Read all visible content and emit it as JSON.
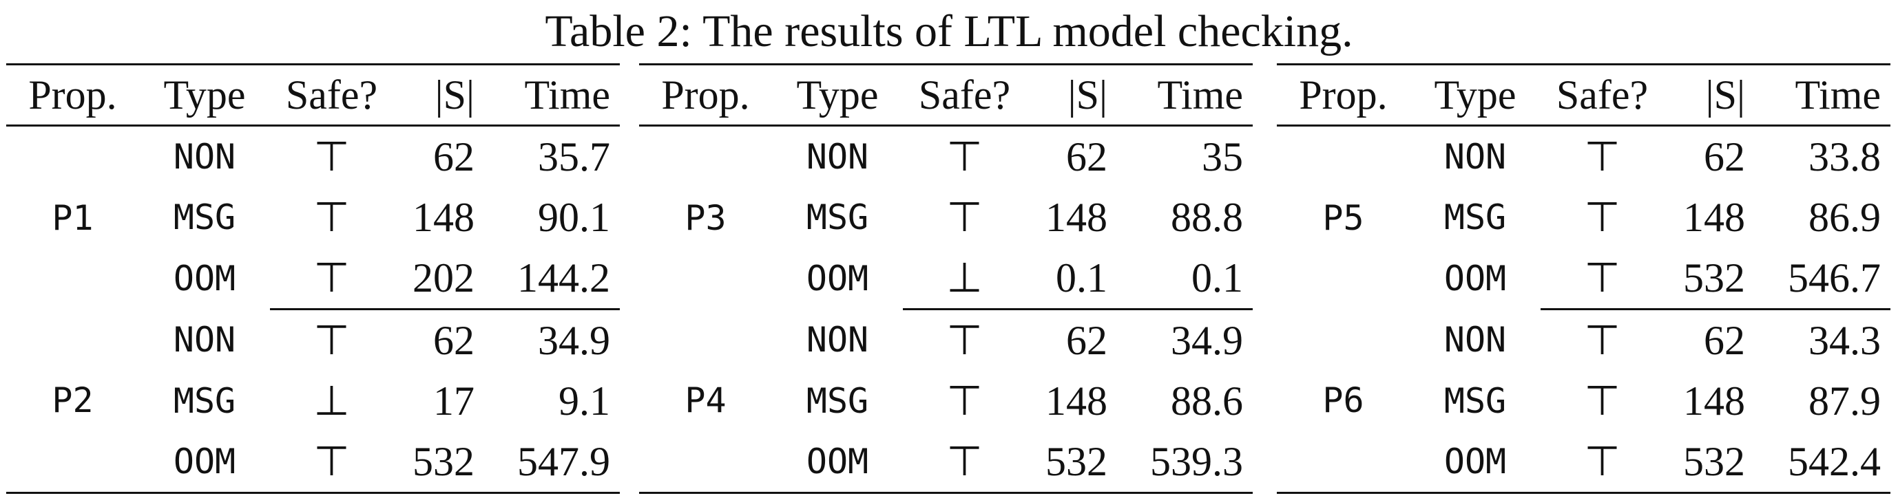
{
  "title": "Table 2: The results of LTL model checking.",
  "tables": [
    {
      "header": [
        "Prop.",
        "Type",
        "Safe?",
        "|S|",
        "Time"
      ],
      "groups": [
        {
          "prop": "P1",
          "rows": [
            [
              "NON",
              "⊤",
              62,
              35.7
            ],
            [
              "MSG",
              "⊤",
              148,
              90.1
            ],
            [
              "OOM",
              "⊤",
              202,
              144.2
            ]
          ]
        },
        {
          "prop": "P2",
          "rows": [
            [
              "NON",
              "⊤",
              62,
              34.9
            ],
            [
              "MSG",
              "⊥",
              17,
              9.1
            ],
            [
              "OOM",
              "⊤",
              532,
              547.9
            ]
          ]
        }
      ]
    },
    {
      "header": [
        "Prop.",
        "Type",
        "Safe?",
        "|S|",
        "Time"
      ],
      "groups": [
        {
          "prop": "P3",
          "rows": [
            [
              "NON",
              "⊤",
              62,
              35
            ],
            [
              "MSG",
              "⊤",
              148,
              88.8
            ],
            [
              "OOM",
              "⊥",
              0.1,
              0.1
            ]
          ]
        },
        {
          "prop": "P4",
          "rows": [
            [
              "NON",
              "⊤",
              62,
              34.9
            ],
            [
              "MSG",
              "⊤",
              148,
              88.6
            ],
            [
              "OOM",
              "⊤",
              532,
              539.3
            ]
          ]
        }
      ]
    },
    {
      "header": [
        "Prop.",
        "Type",
        "Safe?",
        "|S|",
        "Time"
      ],
      "groups": [
        {
          "prop": "P5",
          "rows": [
            [
              "NON",
              "⊤",
              62,
              33.8
            ],
            [
              "MSG",
              "⊤",
              148,
              86.9
            ],
            [
              "OOM",
              "⊤",
              532,
              546.7
            ]
          ]
        },
        {
          "prop": "P6",
          "rows": [
            [
              "NON",
              "⊤",
              62,
              34.3
            ],
            [
              "MSG",
              "⊤",
              148,
              87.9
            ],
            [
              "OOM",
              "⊤",
              532,
              542.4
            ]
          ]
        }
      ]
    }
  ]
}
